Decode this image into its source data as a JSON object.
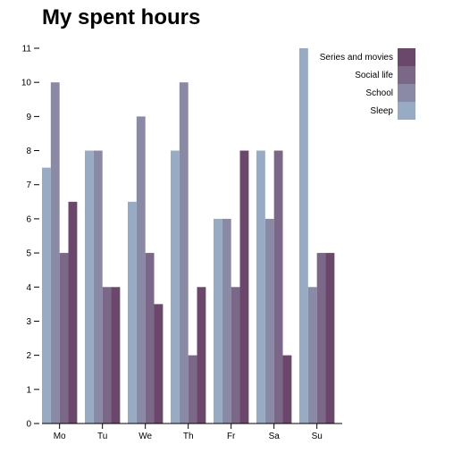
{
  "chart_data": {
    "type": "bar",
    "title": "My spent hours",
    "xlabel": "",
    "ylabel": "",
    "categories": [
      "Mo",
      "Tu",
      "We",
      "Th",
      "Fr",
      "Sa",
      "Su"
    ],
    "ylim": [
      0,
      11
    ],
    "yticks": [
      0,
      1,
      2,
      3,
      4,
      5,
      6,
      7,
      8,
      9,
      10,
      11
    ],
    "grid": false,
    "legend_position": "top-right",
    "series": [
      {
        "name": "Sleep",
        "color": "#98abc5",
        "values": [
          7.5,
          8,
          6.5,
          8,
          6,
          8,
          11
        ]
      },
      {
        "name": "School",
        "color": "#8a89a6",
        "values": [
          10,
          8,
          9,
          10,
          6,
          6,
          4
        ]
      },
      {
        "name": "Social life",
        "color": "#7b6888",
        "values": [
          5,
          4,
          5,
          2,
          4,
          8,
          5
        ]
      },
      {
        "name": "Series and movies",
        "color": "#6b486b",
        "values": [
          6.5,
          4,
          3.5,
          4,
          8,
          2,
          5
        ]
      }
    ],
    "legend_order": [
      "Series and movies",
      "Social life",
      "School",
      "Sleep"
    ]
  }
}
